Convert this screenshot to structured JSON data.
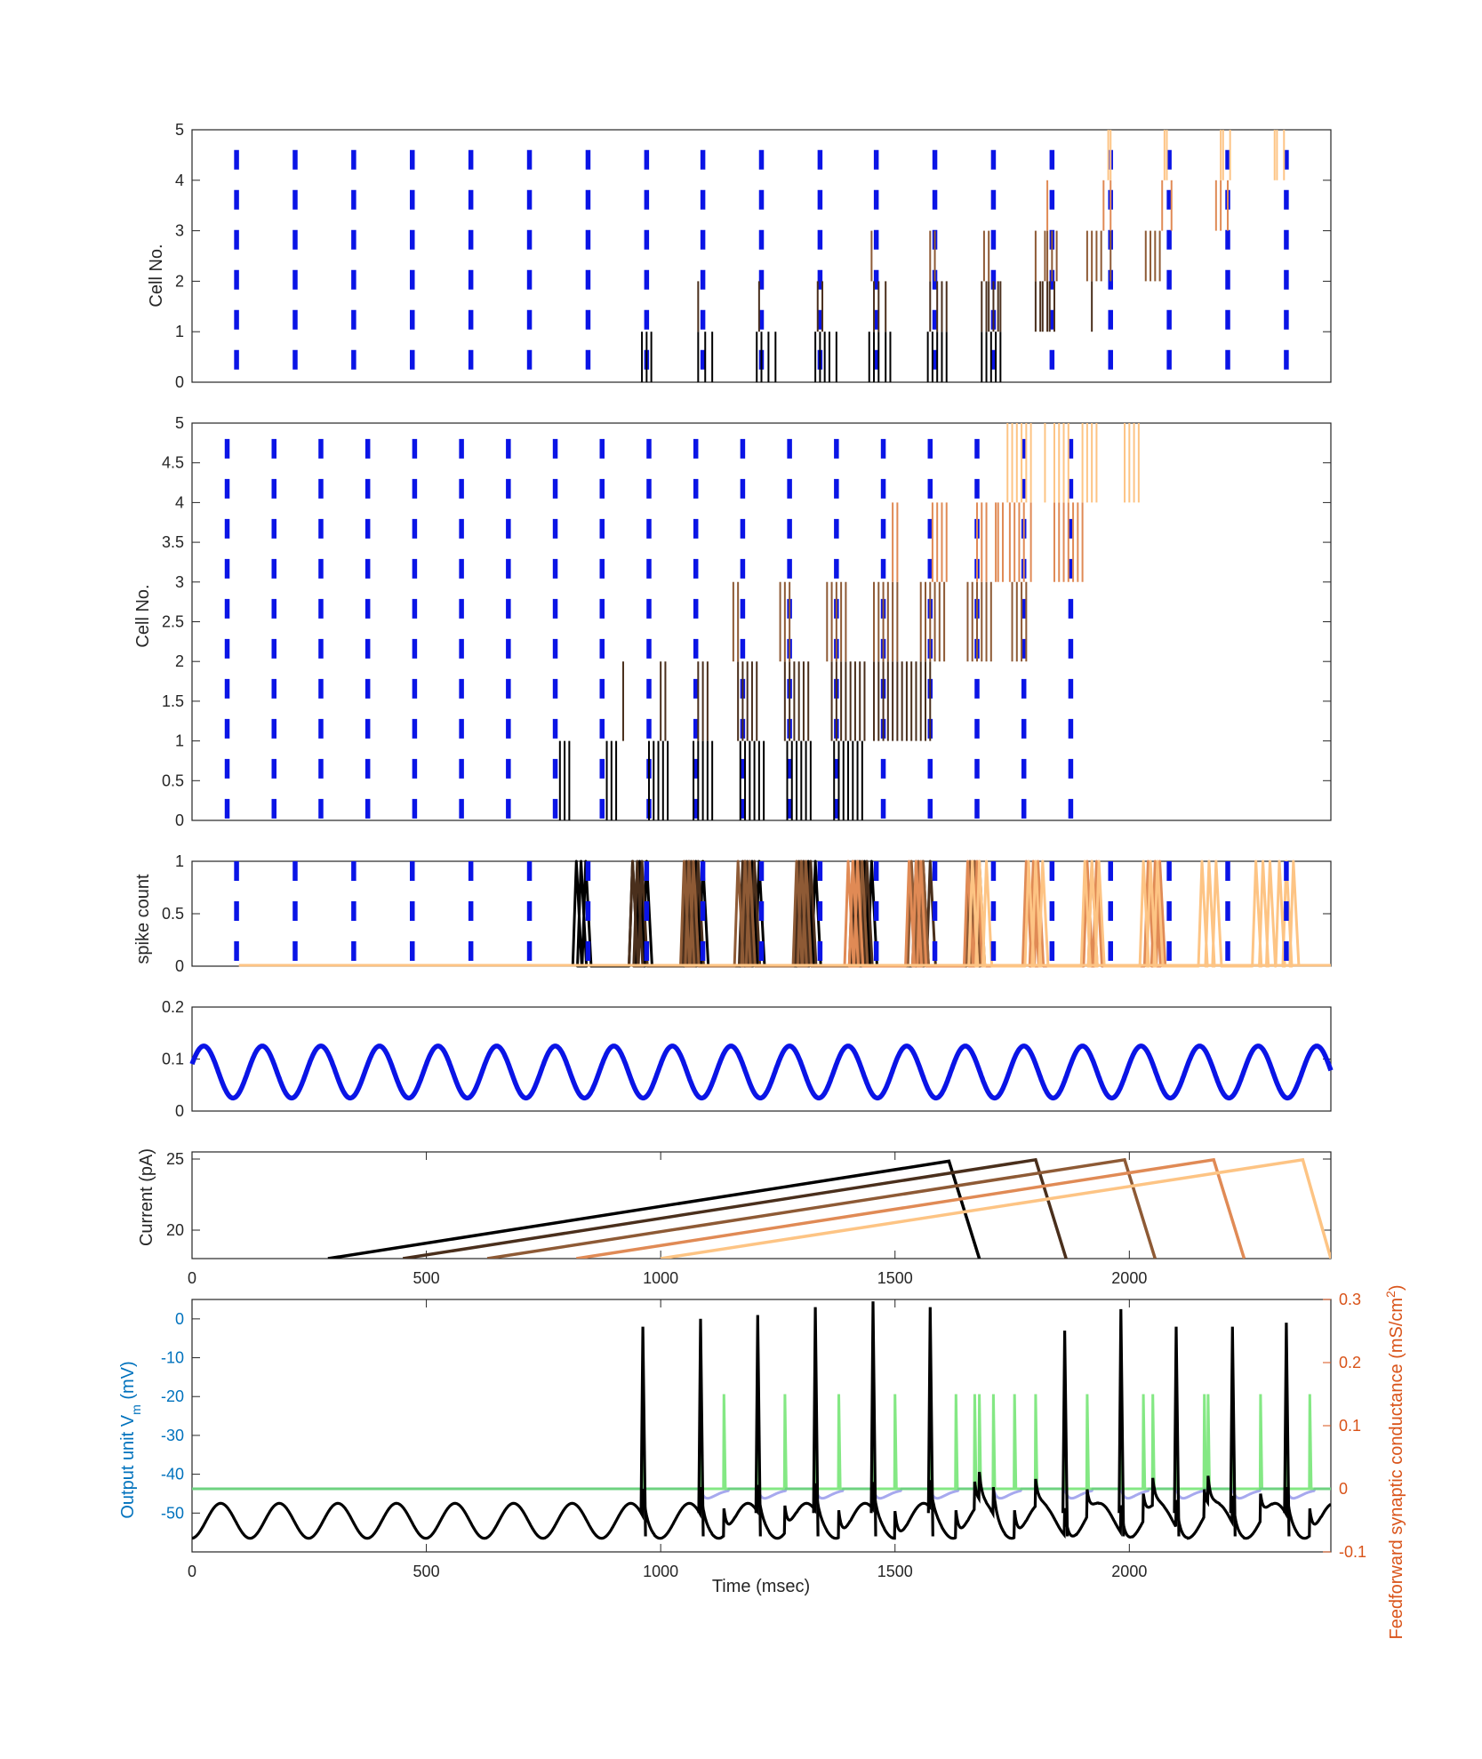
{
  "colors": {
    "blue": "#0a14e6",
    "green": "#5be05b",
    "lilac": "#a7a9ee",
    "left_axis": "#0072bd",
    "right_axis": "#d95319",
    "cells": [
      "#000000",
      "#4a2f1c",
      "#8e5a35",
      "#e08a55",
      "#fdc484"
    ]
  },
  "chart_data": [
    {
      "type": "raster",
      "panel": 1,
      "ylabel": "Cell No.",
      "xlim": [
        0,
        2430
      ],
      "ylim": [
        0,
        5
      ],
      "yticks": [
        "0",
        "1",
        "2",
        "3",
        "4",
        "5"
      ],
      "ytick_values": [
        0,
        1,
        2,
        3,
        4,
        5
      ],
      "marker_times": [
        95,
        220,
        345,
        470,
        595,
        720,
        845,
        970,
        1090,
        1215,
        1340,
        1460,
        1585,
        1710,
        1835,
        1960,
        2085,
        2210,
        2335
      ],
      "marker_span": [
        0,
        4.6
      ],
      "bursts": [
        {
          "cell": 0,
          "times": [
            960,
            970,
            980,
            1080,
            1095,
            1110,
            1205,
            1215,
            1230,
            1245,
            1330,
            1340,
            1350,
            1360,
            1375,
            1445,
            1455,
            1465,
            1480,
            1490,
            1570,
            1580,
            1590,
            1600,
            1610,
            1685,
            1695,
            1705,
            1715,
            1725
          ]
        },
        {
          "cell": 1,
          "times": [
            1080,
            1210,
            1335,
            1345,
            1455,
            1465,
            1480,
            1575,
            1590,
            1600,
            1610,
            1685,
            1695,
            1700,
            1710,
            1720,
            1725,
            1800,
            1810,
            1815,
            1825,
            1830,
            1840,
            1920
          ]
        },
        {
          "cell": 2,
          "times": [
            1450,
            1575,
            1585,
            1690,
            1700,
            1800,
            1820,
            1825,
            1835,
            1845,
            1910,
            1920,
            1930,
            1940,
            1960,
            2035,
            2045,
            2055,
            2065
          ]
        },
        {
          "cell": 3,
          "times": [
            1825,
            1945,
            1960,
            2070,
            2090,
            2185,
            2195,
            2210
          ]
        },
        {
          "cell": 4,
          "times": [
            1955,
            1960,
            2075,
            2080,
            2195,
            2200,
            2215,
            2310,
            2315,
            2330
          ]
        }
      ]
    },
    {
      "type": "raster",
      "panel": 2,
      "ylabel": "Cell No.",
      "xlim": [
        0,
        2430
      ],
      "ylim": [
        0,
        5
      ],
      "yticks": [
        "0",
        "0.5",
        "1",
        "1.5",
        "2",
        "2.5",
        "3",
        "3.5",
        "4",
        "4.5",
        "5"
      ],
      "ytick_values": [
        0,
        0.5,
        1,
        1.5,
        2,
        2.5,
        3,
        3.5,
        4,
        4.5,
        5
      ],
      "marker_times": [
        75,
        175,
        275,
        375,
        475,
        575,
        675,
        775,
        875,
        975,
        1075,
        1175,
        1275,
        1375,
        1475,
        1575,
        1675,
        1775,
        1875
      ],
      "marker_span": [
        0,
        4.8
      ],
      "bursts": [
        {
          "cell": 0,
          "times": [
            785,
            795,
            805,
            885,
            895,
            905,
            975,
            985,
            995,
            1005,
            1015,
            1070,
            1080,
            1090,
            1100,
            1110,
            1170,
            1180,
            1190,
            1200,
            1210,
            1220,
            1270,
            1280,
            1290,
            1300,
            1310,
            1320,
            1370,
            1380,
            1390,
            1400,
            1410,
            1420,
            1430
          ]
        },
        {
          "cell": 1,
          "times": [
            920,
            1000,
            1010,
            1080,
            1090,
            1100,
            1165,
            1175,
            1185,
            1195,
            1205,
            1265,
            1275,
            1285,
            1295,
            1305,
            1315,
            1365,
            1375,
            1385,
            1395,
            1405,
            1415,
            1425,
            1435,
            1455,
            1465,
            1475,
            1485,
            1495,
            1505,
            1515,
            1525,
            1535,
            1545,
            1555,
            1565,
            1575
          ]
        },
        {
          "cell": 2,
          "times": [
            1155,
            1165,
            1255,
            1265,
            1275,
            1355,
            1365,
            1375,
            1385,
            1395,
            1455,
            1465,
            1475,
            1485,
            1495,
            1505,
            1555,
            1565,
            1575,
            1585,
            1595,
            1605,
            1655,
            1665,
            1675,
            1685,
            1695,
            1705,
            1750,
            1760,
            1770,
            1780
          ]
        },
        {
          "cell": 3,
          "times": [
            1495,
            1505,
            1580,
            1590,
            1600,
            1610,
            1675,
            1685,
            1695,
            1715,
            1720,
            1730,
            1745,
            1755,
            1765,
            1775,
            1790,
            1840,
            1850,
            1860,
            1870,
            1880,
            1890,
            1900
          ]
        },
        {
          "cell": 4,
          "times": [
            1740,
            1750,
            1760,
            1770,
            1780,
            1790,
            1820,
            1840,
            1850,
            1860,
            1870,
            1900,
            1910,
            1920,
            1930,
            1990,
            2000,
            2010,
            2020
          ]
        }
      ]
    },
    {
      "type": "line",
      "panel": 3,
      "ylabel": "spike count",
      "xlim": [
        0,
        2430
      ],
      "ylim": [
        0,
        1
      ],
      "yticks": [
        "0",
        "0.5",
        "1"
      ],
      "ytick_values": [
        0,
        0.5,
        1
      ],
      "marker_times": [
        95,
        220,
        345,
        470,
        595,
        720,
        845,
        970,
        1090,
        1215,
        1340,
        1460,
        1585,
        1710,
        1835,
        1960,
        2085,
        2210,
        2335
      ],
      "baseline_range": [
        100,
        2430
      ],
      "bursts": [
        {
          "cell": 0,
          "start": 820,
          "times": [
            820,
            830,
            840,
            940,
            955,
            970,
            1060,
            1075,
            1090,
            1180,
            1195,
            1210,
            1300,
            1315,
            1330,
            1420,
            1435,
            1450
          ]
        },
        {
          "cell": 1,
          "start": 940,
          "times": [
            940,
            950,
            960,
            1055,
            1065,
            1080,
            1175,
            1185,
            1200,
            1295,
            1305,
            1320,
            1415,
            1425,
            1440,
            1545,
            1560,
            1575
          ]
        },
        {
          "cell": 2,
          "start": 1050,
          "times": [
            1050,
            1060,
            1070,
            1165,
            1180,
            1190,
            1290,
            1300,
            1310,
            1410,
            1420,
            1430,
            1535,
            1550,
            1560,
            1660,
            1670,
            1680
          ]
        },
        {
          "cell": 3,
          "start": 1400,
          "times": [
            1400,
            1410,
            1420,
            1530,
            1545,
            1555,
            1655,
            1665,
            1675,
            1780,
            1795,
            1805,
            1910,
            1920,
            1930,
            2040,
            2055,
            2065
          ]
        },
        {
          "cell": 4,
          "start": 1660,
          "times": [
            1665,
            1680,
            1695,
            1785,
            1800,
            1815,
            1905,
            1920,
            1935,
            2030,
            2045,
            2060,
            2155,
            2170,
            2185,
            2270,
            2285,
            2300,
            2320,
            2335,
            2350
          ]
        }
      ]
    },
    {
      "type": "line",
      "panel": 4,
      "xlim": [
        0,
        2430
      ],
      "ylim": [
        0,
        0.2
      ],
      "yticks": [
        "0",
        "0.1",
        "0.2"
      ],
      "ytick_values": [
        0,
        0.1,
        0.2
      ],
      "series": [
        {
          "mean": 0.075,
          "amplitude": 0.05,
          "period_ms": 125,
          "peak_at_ms": 25
        }
      ]
    },
    {
      "type": "line",
      "panel": 5,
      "ylabel": "Current (pA)",
      "xlim": [
        0,
        2430
      ],
      "ylim": [
        18,
        25.5
      ],
      "yticks": [
        "20",
        "25"
      ],
      "ytick_values": [
        20,
        25
      ],
      "xticks": [
        "0",
        "500",
        "1000",
        "1500",
        "2000"
      ],
      "xtick_values": [
        0,
        500,
        1000,
        1500,
        2000
      ],
      "series": [
        {
          "cell": 0,
          "points": [
            [
              290,
              18
            ],
            [
              1615,
              24.85
            ],
            [
              1680,
              18
            ]
          ]
        },
        {
          "cell": 1,
          "points": [
            [
              450,
              18
            ],
            [
              1800,
              24.95
            ],
            [
              1865,
              18
            ]
          ]
        },
        {
          "cell": 2,
          "points": [
            [
              630,
              18
            ],
            [
              1990,
              24.95
            ],
            [
              2055,
              18
            ]
          ]
        },
        {
          "cell": 3,
          "points": [
            [
              820,
              18
            ],
            [
              2180,
              24.95
            ],
            [
              2245,
              18
            ]
          ]
        },
        {
          "cell": 4,
          "points": [
            [
              1000,
              18
            ],
            [
              2370,
              24.95
            ],
            [
              2430,
              18
            ]
          ]
        }
      ]
    },
    {
      "type": "line",
      "panel": 6,
      "xlabel": "Time (msec)",
      "ylabel": "Output unit V",
      "ylabel_sub": "m",
      "ylabel_tail": " (mV)",
      "y2label": "Feedforward synaptic conductance (mS/cm",
      "y2label_sup": "2",
      "y2label_tail": ")",
      "xlim": [
        0,
        2430
      ],
      "ylim": [
        -60,
        5
      ],
      "y2lim": [
        -0.1,
        0.3
      ],
      "xticks": [
        "0",
        "500",
        "1000",
        "1500",
        "2000"
      ],
      "xtick_values": [
        0,
        500,
        1000,
        1500,
        2000
      ],
      "yticks": [
        "-50",
        "-40",
        "-30",
        "-20",
        "-10",
        "0"
      ],
      "ytick_values": [
        -50,
        -40,
        -30,
        -20,
        -10,
        0
      ],
      "y2ticks": [
        "-0.1",
        "0",
        "0.1",
        "0.2",
        "0.3"
      ],
      "y2tick_values": [
        -0.1,
        0,
        0.1,
        0.2,
        0.3
      ],
      "vm_baseline": {
        "mean": -52,
        "amplitude": 4.5,
        "period_ms": 125
      },
      "output_spikes": [
        {
          "t": 962,
          "peak": -2
        },
        {
          "t": 1085,
          "peak": 0
        },
        {
          "t": 1207,
          "peak": 1
        },
        {
          "t": 1330,
          "peak": 3
        },
        {
          "t": 1453,
          "peak": 4.5
        },
        {
          "t": 1575,
          "peak": 3
        },
        {
          "t": 1862,
          "peak": -3
        },
        {
          "t": 1982,
          "peak": 2.5
        },
        {
          "t": 2100,
          "peak": -2
        },
        {
          "t": 2220,
          "peak": -2
        },
        {
          "t": 2335,
          "peak": -1
        }
      ],
      "conductance_baseline": 0,
      "conductance_peaks": [
        962,
        1085,
        1135,
        1207,
        1265,
        1330,
        1380,
        1453,
        1500,
        1575,
        1630,
        1670,
        1680,
        1710,
        1755,
        1800,
        1862,
        1910,
        1982,
        2030,
        2050,
        2100,
        2160,
        2168,
        2220,
        2280,
        2335,
        2385
      ],
      "conductance_peak_value": 0.15,
      "inhibitory_dips": [
        1085,
        1207,
        1330,
        1453,
        1575,
        1710,
        1862,
        1982,
        2100,
        2220,
        2335
      ],
      "inhibitory_dip_value": -0.015
    }
  ]
}
